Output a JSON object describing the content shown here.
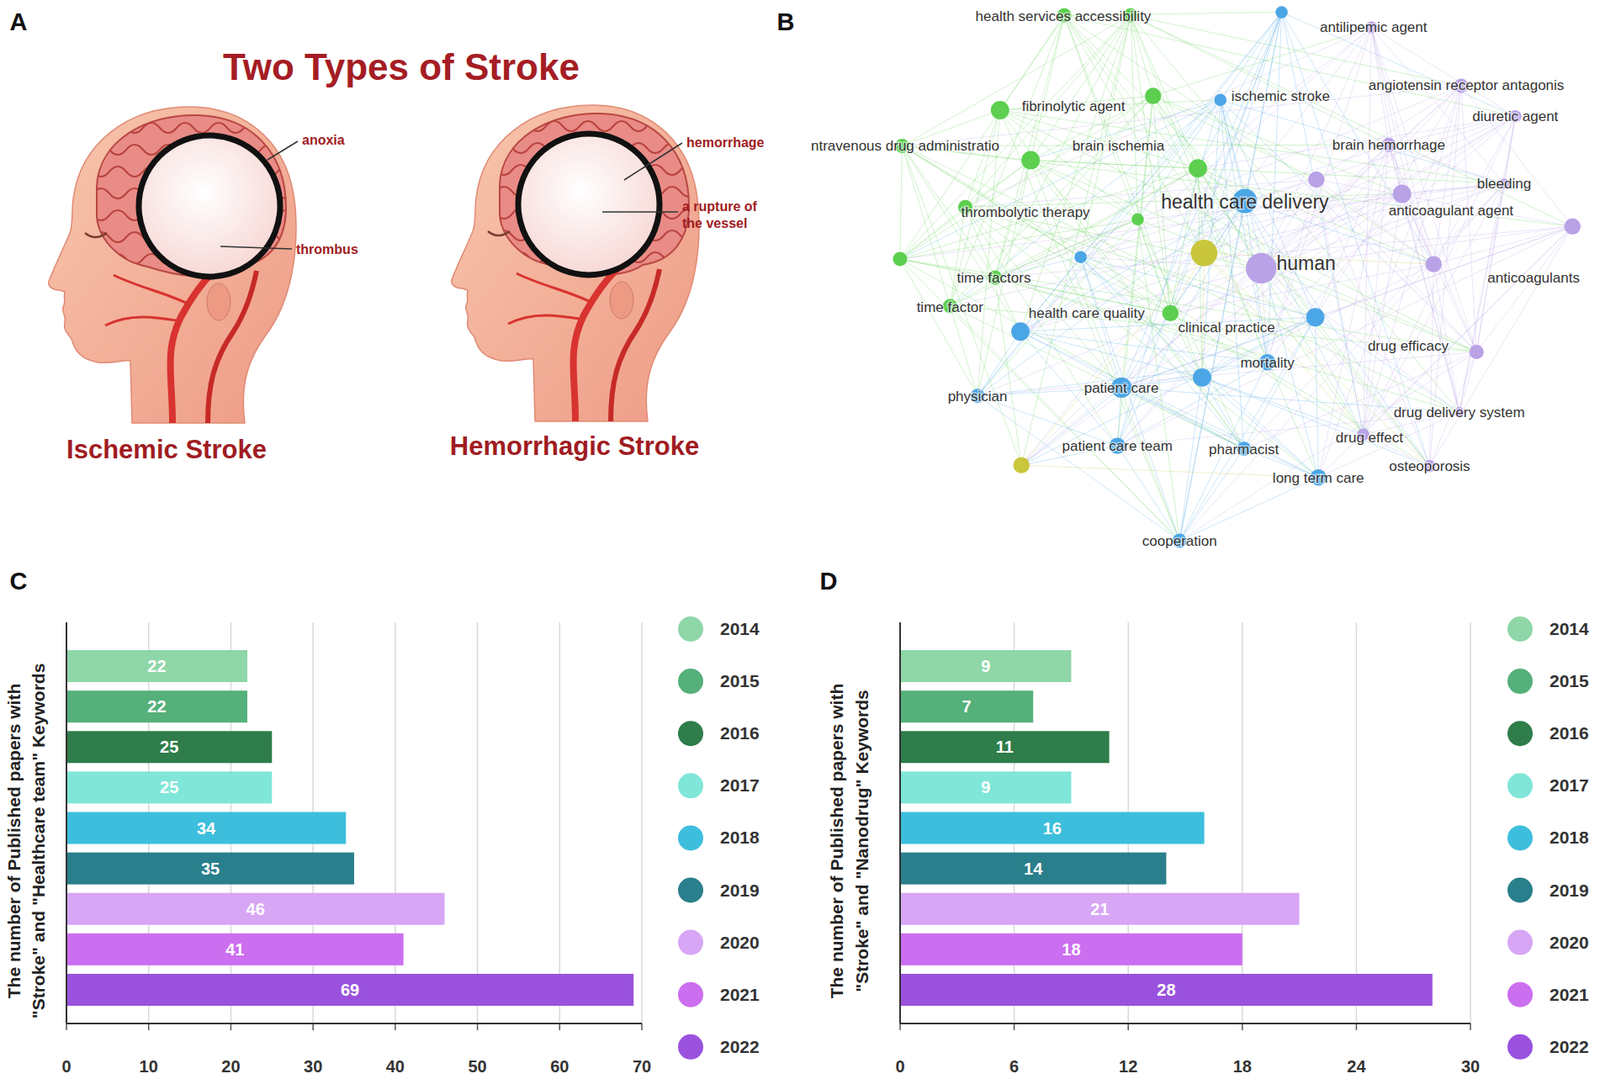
{
  "panel_a": {
    "label": "A",
    "title": "Two Types of Stroke",
    "types": [
      {
        "title": "Ischemic Stroke",
        "callouts": [
          {
            "lines": [
              "anoxia"
            ]
          },
          {
            "lines": [
              "thrombus"
            ]
          }
        ]
      },
      {
        "title": "Hemorrhagic Stroke",
        "callouts": [
          {
            "lines": [
              "hemorrhage"
            ]
          },
          {
            "lines": [
              "a rupture of",
              "the vessel"
            ]
          }
        ]
      }
    ]
  },
  "panel_b": {
    "label": "B",
    "nodes": [
      {
        "label": "health services accessibility",
        "color": "#5ccf4f"
      },
      {
        "label": null,
        "color": "#5ccf4f"
      },
      {
        "label": "fibrinolytic agent",
        "color": "#5ccf4f"
      },
      {
        "label": null,
        "color": "#5ccf4f"
      },
      {
        "label": null,
        "color": "#4ba6e6"
      },
      {
        "label": "antilipemic agent",
        "color": "#b9a2e6"
      },
      {
        "label": "ischemic stroke",
        "color": "#4ba6e6"
      },
      {
        "label": "angiotensin receptor antagonis",
        "color": "#b9a2e6"
      },
      {
        "label": "diuretic agent",
        "color": "#b9a2e6"
      },
      {
        "label": "ntravenous drug administratio",
        "color": "#5ccf4f"
      },
      {
        "label": "brain ischemia",
        "color": "#5ccf4f"
      },
      {
        "label": "brain hemorrhage",
        "color": "#b9a2e6"
      },
      {
        "label": null,
        "color": "#5ccf4f"
      },
      {
        "label": null,
        "color": "#b9a2e6"
      },
      {
        "label": "bleeding",
        "color": "#b9a2e6"
      },
      {
        "label": "thrombolytic therapy",
        "color": "#5ccf4f"
      },
      {
        "label": "health care delivery",
        "color": "#4ba6e6"
      },
      {
        "label": "anticoagulant agent",
        "color": "#b9a2e6"
      },
      {
        "label": null,
        "color": "#5ccf4f"
      },
      {
        "label": null,
        "color": "#b9a2e6"
      },
      {
        "label": null,
        "color": "#c9c63c"
      },
      {
        "label": "human",
        "color": "#b9a2e6"
      },
      {
        "label": null,
        "color": "#5ccf4f"
      },
      {
        "label": null,
        "color": "#4ba6e6"
      },
      {
        "label": "anticoagulants",
        "color": "#b9a2e6"
      },
      {
        "label": "time factors",
        "color": "#5ccf4f"
      },
      {
        "label": "time factor",
        "color": "#5ccf4f"
      },
      {
        "label": "health care quality",
        "color": "#4ba6e6"
      },
      {
        "label": "clinical practice",
        "color": "#5ccf4f"
      },
      {
        "label": null,
        "color": "#4ba6e6"
      },
      {
        "label": "drug efficacy",
        "color": "#b9a2e6"
      },
      {
        "label": "mortality",
        "color": "#4ba6e6"
      },
      {
        "label": null,
        "color": "#4ba6e6"
      },
      {
        "label": "patient care",
        "color": "#4ba6e6"
      },
      {
        "label": "physician",
        "color": "#4ba6e6"
      },
      {
        "label": "drug delivery system",
        "color": "#b9a2e6"
      },
      {
        "label": "drug effect",
        "color": "#b9a2e6"
      },
      {
        "label": "patient care team",
        "color": "#4ba6e6"
      },
      {
        "label": "pharmacist",
        "color": "#4ba6e6"
      },
      {
        "label": null,
        "color": "#c9c63c"
      },
      {
        "label": "osteoporosis",
        "color": "#b9a2e6"
      },
      {
        "label": "long term care",
        "color": "#4ba6e6"
      },
      {
        "label": "cooperation",
        "color": "#4ba6e6"
      }
    ]
  },
  "chart_data": [
    {
      "type": "bar",
      "orientation": "horizontal",
      "panel_label": "C",
      "ylabel": [
        "The number of Published papers with",
        "\"Stroke\" and \"Healthcare team\" Keywords"
      ],
      "categories": [
        "2014",
        "2015",
        "2016",
        "2017",
        "2018",
        "2019",
        "2020",
        "2021",
        "2022"
      ],
      "values": [
        22,
        22,
        25,
        25,
        34,
        35,
        46,
        41,
        69
      ],
      "colors": [
        "#8fd6a8",
        "#55b07a",
        "#2e7d4a",
        "#7fe6d8",
        "#3dbedc",
        "#2a7f8c",
        "#d7a6f5",
        "#cc6ef0",
        "#9a52de"
      ],
      "xlim": [
        0,
        70
      ],
      "xticks": [
        0,
        10,
        20,
        30,
        40,
        50,
        60,
        70
      ],
      "grid": true,
      "data_labels": true,
      "legend": "right",
      "tick_labels": "x"
    },
    {
      "type": "bar",
      "orientation": "horizontal",
      "panel_label": "D",
      "ylabel": [
        "The number of Published papers with",
        "\"Stroke\" and \"Nanodrug\" Keywords"
      ],
      "categories": [
        "2014",
        "2015",
        "2016",
        "2017",
        "2018",
        "2019",
        "2020",
        "2021",
        "2022"
      ],
      "values": [
        9,
        7,
        11,
        9,
        16,
        14,
        21,
        18,
        28
      ],
      "colors": [
        "#8fd6a8",
        "#55b07a",
        "#2e7d4a",
        "#7fe6d8",
        "#3dbedc",
        "#2a7f8c",
        "#d7a6f5",
        "#cc6ef0",
        "#9a52de"
      ],
      "xlim": [
        0,
        30
      ],
      "xticks": [
        0,
        6,
        12,
        18,
        24,
        30
      ],
      "grid": true,
      "data_labels": true,
      "legend": "right",
      "tick_labels": "x"
    }
  ]
}
